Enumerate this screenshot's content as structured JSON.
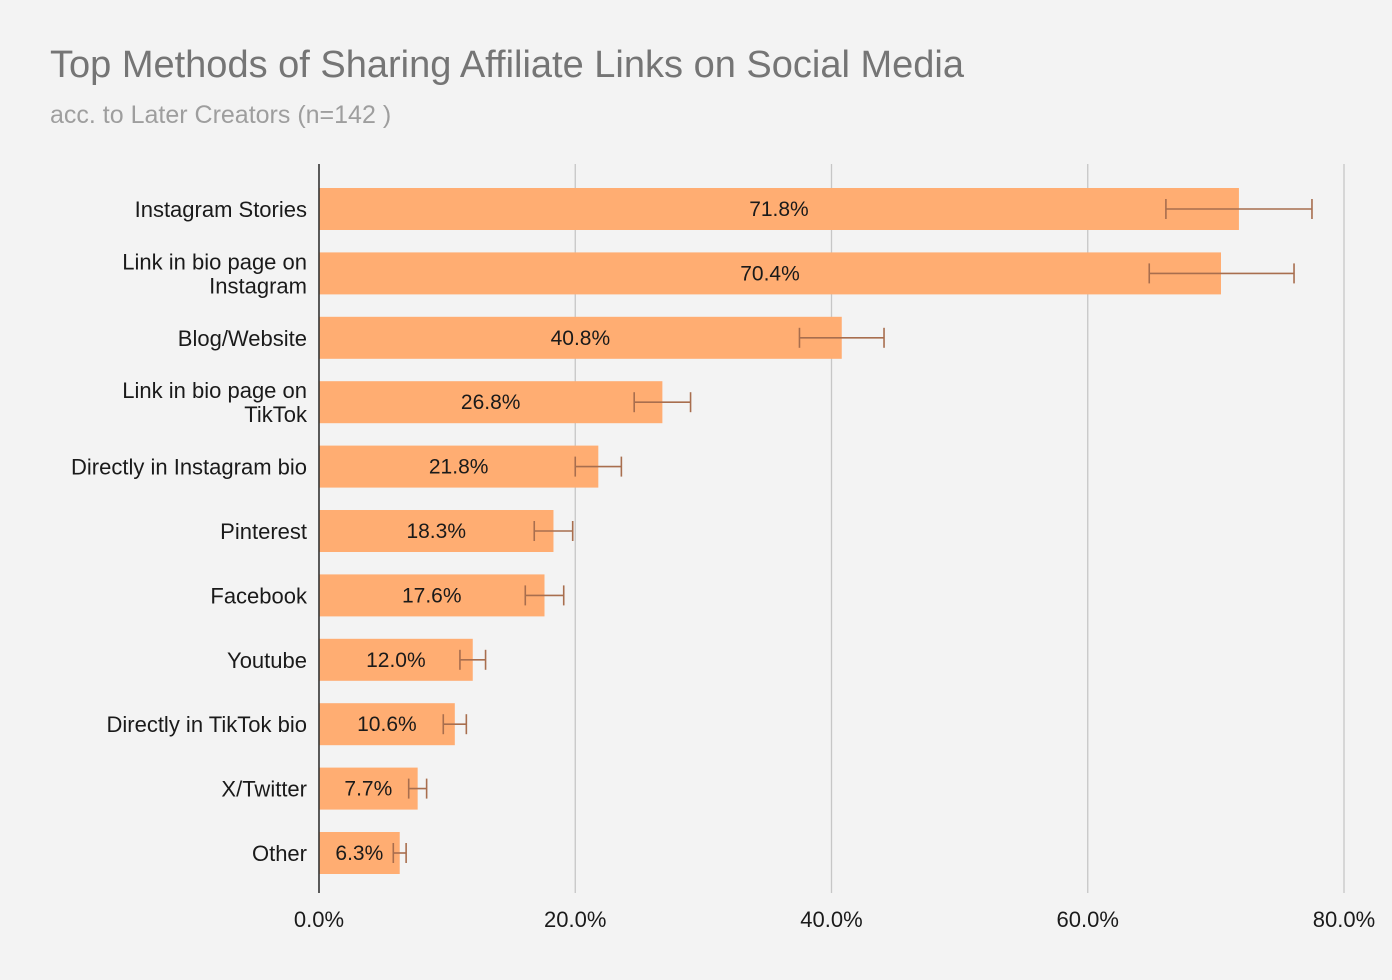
{
  "chart_data": {
    "type": "bar",
    "orientation": "horizontal",
    "title": "Top Methods of Sharing Affiliate Links on Social Media",
    "subtitle": "acc. to Later Creators (n=142 )",
    "categories": [
      [
        "Instagram Stories"
      ],
      [
        "Link in bio page on",
        "Instagram"
      ],
      [
        "Blog/Website"
      ],
      [
        "Link in bio page on",
        "TikTok"
      ],
      [
        "Directly in Instagram bio"
      ],
      [
        "Pinterest"
      ],
      [
        "Facebook"
      ],
      [
        "Youtube"
      ],
      [
        "Directly in TikTok bio"
      ],
      [
        "X/Twitter"
      ],
      [
        "Other"
      ]
    ],
    "values": [
      71.8,
      70.4,
      40.8,
      26.8,
      21.8,
      18.3,
      17.6,
      12.0,
      10.6,
      7.7,
      6.3
    ],
    "value_labels": [
      "71.8%",
      "70.4%",
      "40.8%",
      "26.8%",
      "21.8%",
      "18.3%",
      "17.6%",
      "12.0%",
      "10.6%",
      "7.7%",
      "6.3%"
    ],
    "error_low": [
      66.1,
      64.8,
      37.5,
      24.6,
      20.0,
      16.8,
      16.1,
      11.0,
      9.7,
      7.0,
      5.8
    ],
    "error_high": [
      77.5,
      76.1,
      44.1,
      29.0,
      23.6,
      19.8,
      19.1,
      13.0,
      11.5,
      8.4,
      6.8
    ],
    "xlim": [
      0,
      80
    ],
    "xticks": [
      0,
      20,
      40,
      60,
      80
    ],
    "xtick_labels": [
      "0.0%",
      "20.0%",
      "40.0%",
      "60.0%",
      "80.0%"
    ],
    "grid": true,
    "legend": "none",
    "colors": {
      "bar": "#ffad72",
      "error_bar": "#a86e4e",
      "grid": "#c6c6c6",
      "axis": "#333333",
      "background": "#f3f3f3"
    }
  }
}
